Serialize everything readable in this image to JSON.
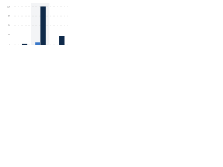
{
  "chart_data": {
    "type": "bar",
    "categories": [
      null,
      null,
      null
    ],
    "series": [
      {
        "color": "#0f2a4a",
        "values": [
          2,
          100,
          22
        ]
      },
      {
        "color": "#3a78c9",
        "values": [
          0,
          5,
          0
        ]
      }
    ],
    "ylim": [
      0,
      110
    ],
    "yticks": [
      0,
      25,
      50,
      75,
      100
    ],
    "grid": true
  }
}
